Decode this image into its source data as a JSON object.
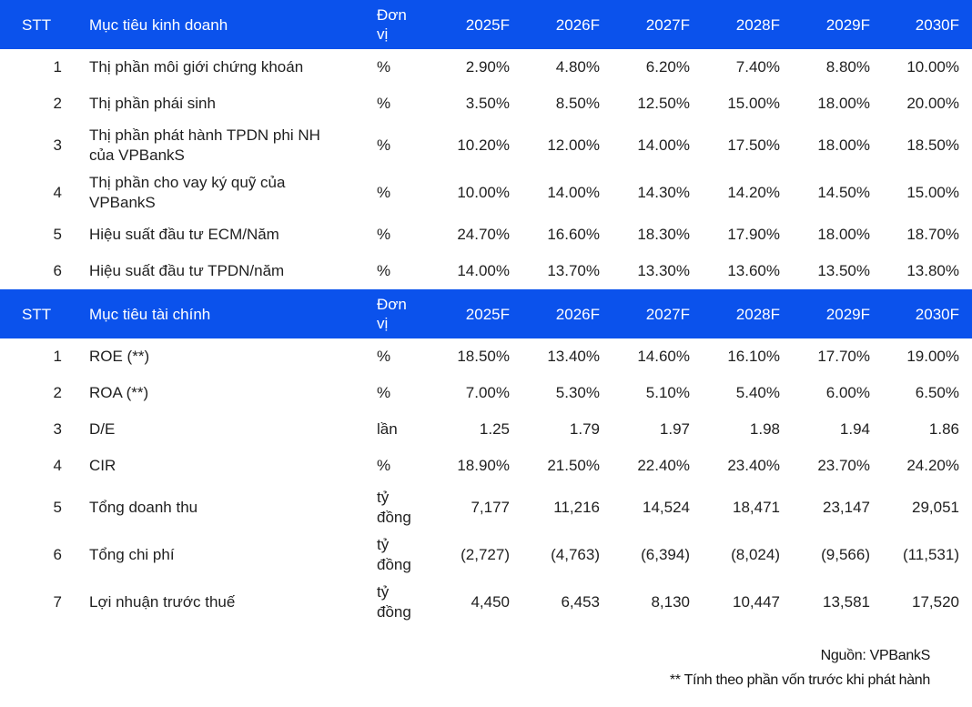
{
  "chart_data": [
    {
      "type": "table",
      "id": "business-targets",
      "header": {
        "stt": "STT",
        "title": "Mục tiêu kinh doanh",
        "unit": "Đơn vị",
        "years": [
          "2025F",
          "2026F",
          "2027F",
          "2028F",
          "2029F",
          "2030F"
        ]
      },
      "rows": [
        {
          "stt": "1",
          "label": "Thị phần môi giới chứng khoán",
          "unit": "%",
          "values": [
            "2.90%",
            "4.80%",
            "6.20%",
            "7.40%",
            "8.80%",
            "10.00%"
          ]
        },
        {
          "stt": "2",
          "label": "Thị phần phái sinh",
          "unit": "%",
          "values": [
            "3.50%",
            "8.50%",
            "12.50%",
            "15.00%",
            "18.00%",
            "20.00%"
          ]
        },
        {
          "stt": "3",
          "label": "Thị phần phát hành TPDN phi NH của VPBankS",
          "unit": "%",
          "values": [
            "10.20%",
            "12.00%",
            "14.00%",
            "17.50%",
            "18.00%",
            "18.50%"
          ]
        },
        {
          "stt": "4",
          "label": "Thị phần cho vay ký quỹ của VPBankS",
          "unit": "%",
          "values": [
            "10.00%",
            "14.00%",
            "14.30%",
            "14.20%",
            "14.50%",
            "15.00%"
          ]
        },
        {
          "stt": "5",
          "label": "Hiệu suất đầu tư ECM/Năm",
          "unit": "%",
          "values": [
            "24.70%",
            "16.60%",
            "18.30%",
            "17.90%",
            "18.00%",
            "18.70%"
          ]
        },
        {
          "stt": "6",
          "label": "Hiệu suất đầu tư TPDN/năm",
          "unit": "%",
          "values": [
            "14.00%",
            "13.70%",
            "13.30%",
            "13.60%",
            "13.50%",
            "13.80%"
          ]
        }
      ]
    },
    {
      "type": "table",
      "id": "financial-targets",
      "header": {
        "stt": "STT",
        "title": "Mục tiêu tài chính",
        "unit": "Đơn vị",
        "years": [
          "2025F",
          "2026F",
          "2027F",
          "2028F",
          "2029F",
          "2030F"
        ]
      },
      "rows": [
        {
          "stt": "1",
          "label": "ROE (**)",
          "unit": "%",
          "values": [
            "18.50%",
            "13.40%",
            "14.60%",
            "16.10%",
            "17.70%",
            "19.00%"
          ]
        },
        {
          "stt": "2",
          "label": "ROA (**)",
          "unit": "%",
          "values": [
            "7.00%",
            "5.30%",
            "5.10%",
            "5.40%",
            "6.00%",
            "6.50%"
          ]
        },
        {
          "stt": "3",
          "label": "D/E",
          "unit": "lần",
          "values": [
            "1.25",
            "1.79",
            "1.97",
            "1.98",
            "1.94",
            "1.86"
          ]
        },
        {
          "stt": "4",
          "label": "CIR",
          "unit": "%",
          "values": [
            "18.90%",
            "21.50%",
            "22.40%",
            "23.40%",
            "23.70%",
            "24.20%"
          ]
        },
        {
          "stt": "5",
          "label": "Tổng doanh thu",
          "unit": "tỷ đồng",
          "values": [
            "7,177",
            "11,216",
            "14,524",
            "18,471",
            "23,147",
            "29,051"
          ]
        },
        {
          "stt": "6",
          "label": "Tổng chi phí",
          "unit": "tỷ đồng",
          "values": [
            "(2,727)",
            "(4,763)",
            "(6,394)",
            "(8,024)",
            "(9,566)",
            "(11,531)"
          ]
        },
        {
          "stt": "7",
          "label": "Lợi nhuận trước thuế",
          "unit": "tỷ đồng",
          "values": [
            "4,450",
            "6,453",
            "8,130",
            "10,447",
            "13,581",
            "17,520"
          ]
        }
      ]
    }
  ],
  "footer": {
    "source": "Nguồn: VPBankS",
    "note": "** Tính theo phần vốn trước khi phát hành"
  },
  "colors": {
    "header_bg": "#0b52ec",
    "header_text": "#ffffff",
    "body_text": "#1f1f1f"
  }
}
